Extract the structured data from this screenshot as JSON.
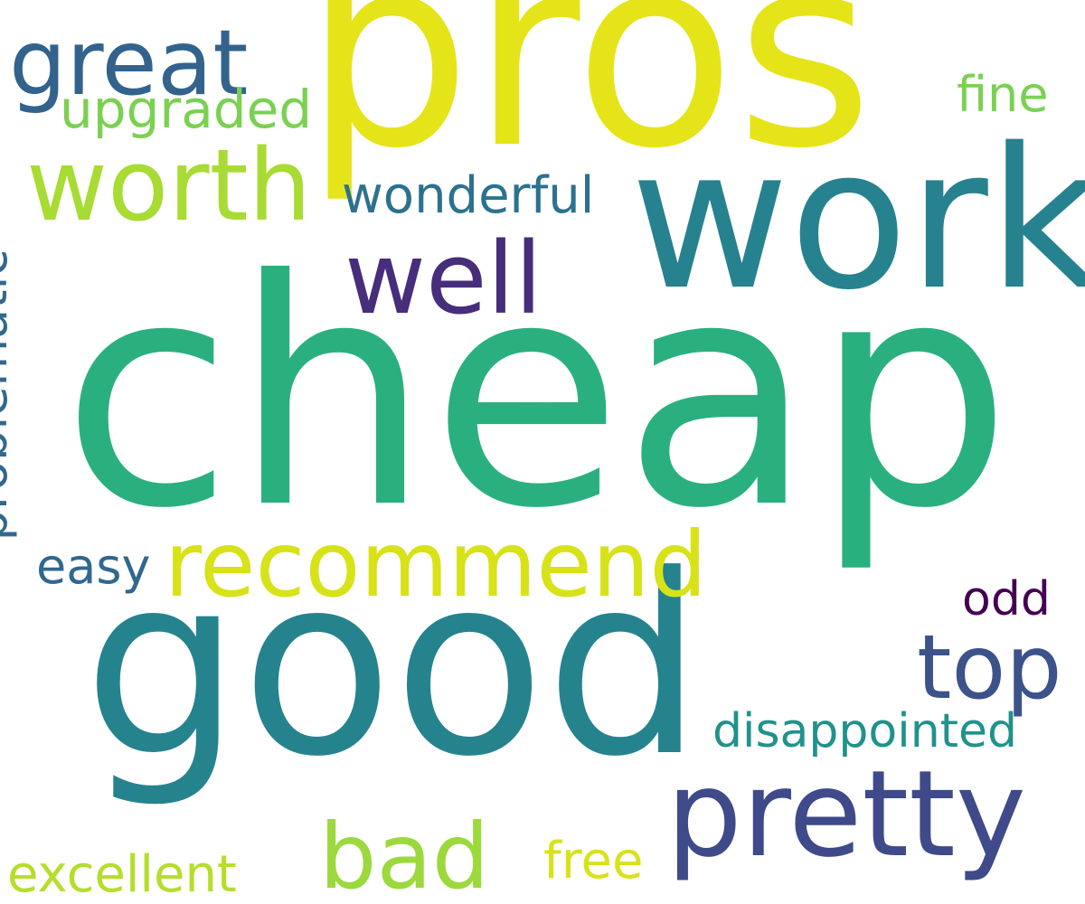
{
  "words": [
    {
      "text": "cheap",
      "color": "#2ab07f"
    },
    {
      "text": "good",
      "color": "#25838e"
    },
    {
      "text": "pros",
      "color": "#e5e419"
    },
    {
      "text": "work",
      "color": "#26828e"
    },
    {
      "text": "pretty",
      "color": "#3e4a89"
    },
    {
      "text": "recommend",
      "color": "#d8e219"
    },
    {
      "text": "worth",
      "color": "#a8db34"
    },
    {
      "text": "great",
      "color": "#33638d"
    },
    {
      "text": "well",
      "color": "#472d7b"
    },
    {
      "text": "top",
      "color": "#3b528b"
    },
    {
      "text": "bad",
      "color": "#9bd93c"
    },
    {
      "text": "wonderful",
      "color": "#2c728e"
    },
    {
      "text": "upgraded",
      "color": "#7ad151"
    },
    {
      "text": "problematic",
      "color": "#31688e"
    },
    {
      "text": "disappointed",
      "color": "#20928c"
    },
    {
      "text": "easy",
      "color": "#31688e"
    },
    {
      "text": "excellent",
      "color": "#b5de2b"
    },
    {
      "text": "fine",
      "color": "#7ad151"
    },
    {
      "text": "odd",
      "color": "#440154"
    },
    {
      "text": "free",
      "color": "#d8e219"
    }
  ]
}
